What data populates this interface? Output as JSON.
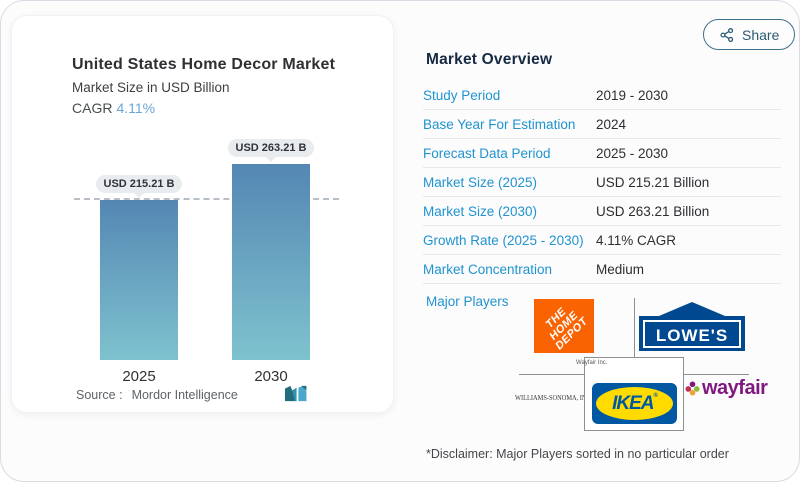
{
  "share": {
    "label": "Share"
  },
  "chart": {
    "title": "United States Home Decor Market",
    "subtitle": "Market Size in USD Billion",
    "cagr_label": "CAGR",
    "cagr_value": "4.11%",
    "source_label": "Source :",
    "source_name": "Mordor Intelligence"
  },
  "chart_data": {
    "type": "bar",
    "title": "United States Home Decor Market",
    "ylabel": "Market Size in USD Billion",
    "categories": [
      "2025",
      "2030"
    ],
    "values": [
      215.21,
      263.21
    ],
    "bar_labels": [
      "USD 215.21 B",
      "USD 263.21 B"
    ],
    "cagr_pct": 4.11,
    "reference_line": 215.21,
    "ylim": [
      0,
      263.21
    ],
    "grid": false,
    "legend": "none",
    "bar_color_top": "#5487b3",
    "bar_color_bottom": "#7ec2ce"
  },
  "overview": {
    "heading": "Market Overview",
    "rows": [
      {
        "label": "Study Period",
        "value": "2019 - 2030"
      },
      {
        "label": "Base Year For Estimation",
        "value": "2024"
      },
      {
        "label": "Forecast Data Period",
        "value": "2025 - 2030"
      },
      {
        "label": "Market Size (2025)",
        "value": "USD 215.21 Billion"
      },
      {
        "label": "Market Size (2030)",
        "value": "USD 263.21 Billion"
      },
      {
        "label": "Growth Rate (2025 - 2030)",
        "value": "4.11% CAGR"
      },
      {
        "label": "Market Concentration",
        "value": "Medium"
      }
    ],
    "major_players_label": "Major Players",
    "players": {
      "home_depot": {
        "name": "The Home Depot",
        "lines": [
          "THE",
          "HOME",
          "DEPOT"
        ],
        "color": "#f96302"
      },
      "lowes": {
        "name": "Lowe's",
        "text": "LOWE'S",
        "color": "#004990"
      },
      "williams_sonoma": {
        "name": "Williams-Sonoma, Inc.",
        "text": "WILLIAMS-SONOMA, INC."
      },
      "ikea": {
        "name": "IKEA",
        "text": "IKEA",
        "reg": "®",
        "blue": "#0058a3",
        "yellow": "#ffdb00"
      },
      "wayfair": {
        "name": "Wayfair",
        "text": "wayfair",
        "color": "#7f187f"
      }
    },
    "overlay_label": "Wayfair Inc."
  },
  "disclaimer": "*Disclaimer: Major Players sorted in no particular order"
}
